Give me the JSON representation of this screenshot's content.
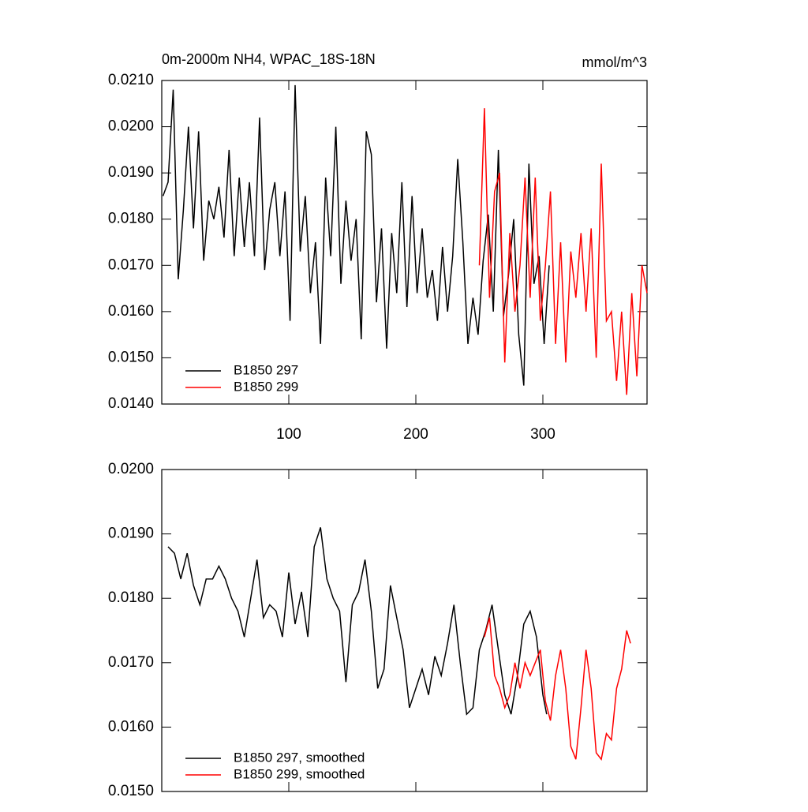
{
  "chart_data": [
    {
      "type": "line",
      "title": "0m-2000m NH4, WPAC_18S-18N",
      "subtitle": "mmol/m^3",
      "xlim": [
        0,
        382
      ],
      "xticks": [
        100,
        200,
        300
      ],
      "show_xtick_labels": true,
      "ylim": [
        0.014,
        0.021
      ],
      "yticks": [
        {
          "value": 0.014,
          "label": "0.0140"
        },
        {
          "value": 0.015,
          "label": "0.0150"
        },
        {
          "value": 0.016,
          "label": "0.0160"
        },
        {
          "value": 0.017,
          "label": "0.0170"
        },
        {
          "value": 0.018,
          "label": "0.0180"
        },
        {
          "value": 0.019,
          "label": "0.0190"
        },
        {
          "value": 0.02,
          "label": "0.0200"
        },
        {
          "value": 0.021,
          "label": "0.0210"
        }
      ],
      "legend": "lower left",
      "series": [
        {
          "name": "B1850 297",
          "color": "#000000",
          "x": [
            1,
            5,
            9,
            13,
            17,
            21,
            25,
            29,
            33,
            37,
            41,
            45,
            49,
            53,
            57,
            61,
            65,
            69,
            73,
            77,
            81,
            85,
            89,
            93,
            97,
            101,
            105,
            109,
            113,
            117,
            121,
            125,
            129,
            133,
            137,
            141,
            145,
            149,
            153,
            157,
            161,
            165,
            169,
            173,
            177,
            181,
            185,
            189,
            193,
            197,
            201,
            205,
            209,
            213,
            217,
            221,
            225,
            229,
            233,
            237,
            241,
            245,
            249,
            253,
            257,
            261,
            265,
            269,
            273,
            277,
            281,
            285,
            289,
            293,
            297,
            301,
            305
          ],
          "values": [
            0.0185,
            0.0188,
            0.0208,
            0.0167,
            0.0182,
            0.02,
            0.0178,
            0.0199,
            0.0171,
            0.0184,
            0.018,
            0.0187,
            0.0176,
            0.0195,
            0.0172,
            0.0189,
            0.0174,
            0.0188,
            0.0172,
            0.0202,
            0.0169,
            0.0182,
            0.0188,
            0.0172,
            0.0186,
            0.0158,
            0.0209,
            0.0173,
            0.0185,
            0.0164,
            0.0175,
            0.0153,
            0.0189,
            0.0172,
            0.02,
            0.0166,
            0.0184,
            0.0171,
            0.018,
            0.0154,
            0.0199,
            0.0194,
            0.0162,
            0.0178,
            0.0152,
            0.0177,
            0.0164,
            0.0188,
            0.0161,
            0.0185,
            0.0164,
            0.0178,
            0.0163,
            0.0169,
            0.0158,
            0.0174,
            0.016,
            0.0172,
            0.0193,
            0.0175,
            0.0153,
            0.0163,
            0.0155,
            0.0171,
            0.0181,
            0.016,
            0.0195,
            0.0159,
            0.0168,
            0.018,
            0.0155,
            0.0144,
            0.0192,
            0.0166,
            0.0172,
            0.0153,
            0.017
          ]
        },
        {
          "name": "B1850 299",
          "color": "#ff0000",
          "x": [
            250,
            254,
            258,
            262,
            266,
            270,
            274,
            278,
            282,
            286,
            290,
            294,
            298,
            302,
            306,
            310,
            314,
            318,
            322,
            326,
            330,
            334,
            338,
            342,
            346,
            350,
            354,
            358,
            362,
            366,
            370,
            374,
            378,
            382
          ],
          "values": [
            0.017,
            0.0204,
            0.0163,
            0.0186,
            0.019,
            0.0149,
            0.0177,
            0.016,
            0.017,
            0.0189,
            0.0163,
            0.0189,
            0.0158,
            0.017,
            0.0186,
            0.0153,
            0.0175,
            0.0149,
            0.0173,
            0.0163,
            0.0177,
            0.016,
            0.0178,
            0.015,
            0.0192,
            0.0158,
            0.016,
            0.0145,
            0.016,
            0.0142,
            0.0164,
            0.0146,
            0.017,
            0.0164
          ]
        }
      ]
    },
    {
      "type": "line",
      "xlim": [
        0,
        382
      ],
      "xticks": [
        100,
        200,
        300
      ],
      "show_xtick_labels": false,
      "ylim": [
        0.015,
        0.02
      ],
      "yticks": [
        {
          "value": 0.015,
          "label": "0.0150"
        },
        {
          "value": 0.016,
          "label": "0.0160"
        },
        {
          "value": 0.017,
          "label": "0.0170"
        },
        {
          "value": 0.018,
          "label": "0.0180"
        },
        {
          "value": 0.019,
          "label": "0.0190"
        },
        {
          "value": 0.02,
          "label": "0.0200"
        }
      ],
      "legend": "lower left",
      "series": [
        {
          "name": "B1850 297, smoothed",
          "color": "#000000",
          "x": [
            5,
            10,
            15,
            20,
            25,
            30,
            35,
            40,
            45,
            50,
            55,
            60,
            65,
            70,
            75,
            80,
            85,
            90,
            95,
            100,
            105,
            110,
            115,
            120,
            125,
            130,
            135,
            140,
            145,
            150,
            155,
            160,
            165,
            170,
            175,
            180,
            185,
            190,
            195,
            200,
            205,
            210,
            215,
            220,
            225,
            230,
            235,
            240,
            245,
            250,
            255,
            260,
            265,
            270,
            275,
            280,
            285,
            290,
            295,
            300,
            303
          ],
          "values": [
            0.0188,
            0.0187,
            0.0183,
            0.0187,
            0.0182,
            0.0179,
            0.0183,
            0.0183,
            0.0185,
            0.0183,
            0.018,
            0.0178,
            0.0174,
            0.018,
            0.0186,
            0.0177,
            0.0179,
            0.0178,
            0.0174,
            0.0184,
            0.0176,
            0.0181,
            0.0174,
            0.0188,
            0.0191,
            0.0183,
            0.018,
            0.0178,
            0.0167,
            0.0179,
            0.0181,
            0.0186,
            0.0178,
            0.0166,
            0.0169,
            0.0182,
            0.0177,
            0.0172,
            0.0163,
            0.0166,
            0.0169,
            0.0165,
            0.0171,
            0.0168,
            0.0173,
            0.0179,
            0.017,
            0.0162,
            0.0163,
            0.0172,
            0.0175,
            0.0179,
            0.0172,
            0.0165,
            0.0162,
            0.0168,
            0.0176,
            0.0178,
            0.0174,
            0.0165,
            0.0162
          ]
        },
        {
          "name": "B1850 299, smoothed",
          "color": "#ff0000",
          "x": [
            254,
            258,
            262,
            266,
            270,
            274,
            278,
            282,
            286,
            290,
            294,
            298,
            302,
            306,
            310,
            314,
            318,
            322,
            326,
            330,
            334,
            338,
            342,
            346,
            350,
            354,
            358,
            362,
            366,
            369
          ],
          "values": [
            0.0174,
            0.0177,
            0.0168,
            0.0166,
            0.0163,
            0.0165,
            0.017,
            0.0166,
            0.017,
            0.0168,
            0.017,
            0.0172,
            0.0164,
            0.0161,
            0.0168,
            0.0172,
            0.0166,
            0.0157,
            0.0155,
            0.0163,
            0.0172,
            0.0166,
            0.0156,
            0.0155,
            0.0159,
            0.0158,
            0.0166,
            0.0169,
            0.0175,
            0.0173
          ]
        }
      ]
    }
  ]
}
